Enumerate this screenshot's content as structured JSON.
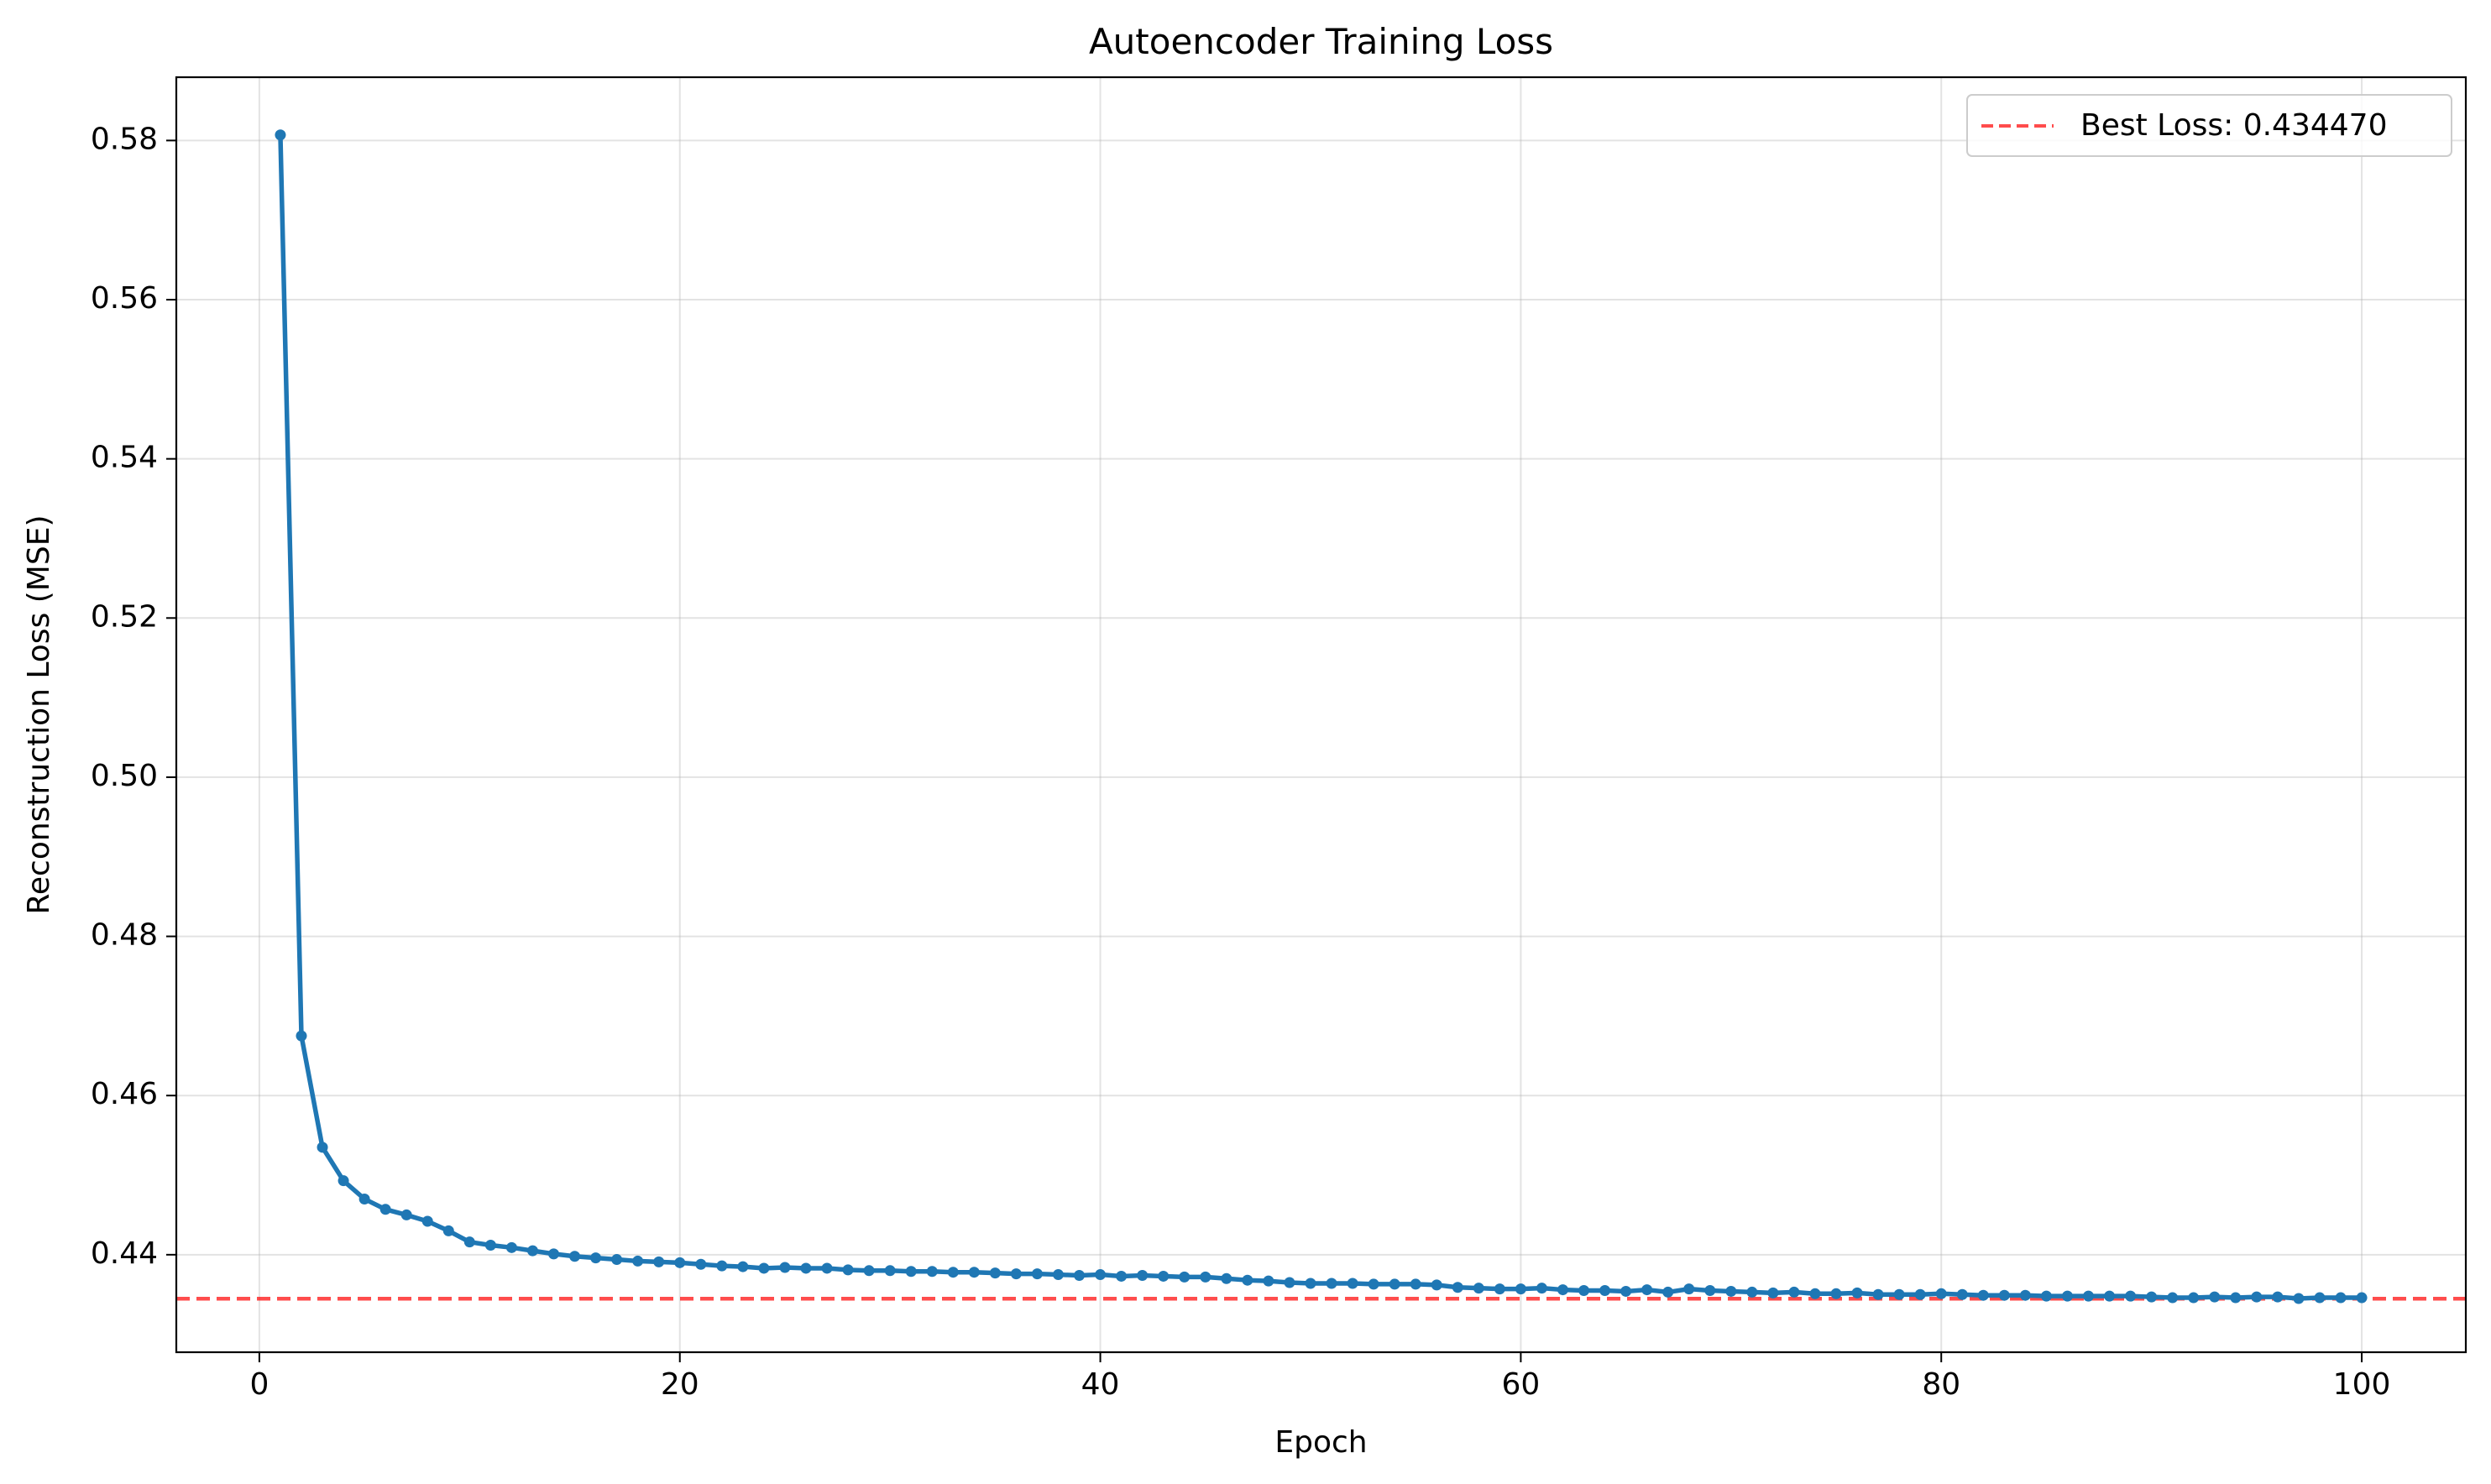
{
  "chart_data": {
    "type": "line",
    "title": "Autoencoder Training Loss",
    "xlabel": "Epoch",
    "ylabel": "Reconstruction Loss (MSE)",
    "xlim": [
      -3.95,
      104.95
    ],
    "ylim": [
      0.42775,
      0.58795
    ],
    "x_ticks": [
      0,
      20,
      40,
      60,
      80,
      100
    ],
    "x_tick_labels": [
      "0",
      "20",
      "40",
      "60",
      "80",
      "100"
    ],
    "y_ticks": [
      0.44,
      0.46,
      0.48,
      0.5,
      0.52,
      0.54,
      0.56,
      0.58
    ],
    "y_tick_labels": [
      "0.44",
      "0.46",
      "0.48",
      "0.50",
      "0.52",
      "0.54",
      "0.56",
      "0.58"
    ],
    "grid": true,
    "legend_position": "top-right",
    "series": [
      {
        "color": "#1f77b4",
        "marker": "circle",
        "x": [
          1,
          2,
          3,
          4,
          5,
          6,
          7,
          8,
          9,
          10,
          11,
          12,
          13,
          14,
          15,
          16,
          17,
          18,
          19,
          20,
          21,
          22,
          23,
          24,
          25,
          26,
          27,
          28,
          29,
          30,
          31,
          32,
          33,
          34,
          35,
          36,
          37,
          38,
          39,
          40,
          41,
          42,
          43,
          44,
          45,
          46,
          47,
          48,
          49,
          50,
          51,
          52,
          53,
          54,
          55,
          56,
          57,
          58,
          59,
          60,
          61,
          62,
          63,
          64,
          65,
          66,
          67,
          68,
          69,
          70,
          71,
          72,
          73,
          74,
          75,
          76,
          77,
          78,
          79,
          80,
          81,
          82,
          83,
          84,
          85,
          86,
          87,
          88,
          89,
          90,
          91,
          92,
          93,
          94,
          95,
          96,
          97,
          98,
          99,
          100
        ],
        "values": [
          0.5807,
          0.4675,
          0.4535,
          0.4493,
          0.447,
          0.4457,
          0.445,
          0.4442,
          0.443,
          0.4416,
          0.4412,
          0.4409,
          0.4405,
          0.4401,
          0.4398,
          0.4396,
          0.4394,
          0.4392,
          0.4391,
          0.439,
          0.4388,
          0.4386,
          0.4385,
          0.4383,
          0.4384,
          0.4383,
          0.4383,
          0.4381,
          0.438,
          0.438,
          0.4379,
          0.4379,
          0.4378,
          0.4378,
          0.4377,
          0.4376,
          0.4376,
          0.4375,
          0.4374,
          0.4375,
          0.4373,
          0.4374,
          0.4373,
          0.4372,
          0.4372,
          0.437,
          0.4368,
          0.4367,
          0.4365,
          0.4364,
          0.4364,
          0.4364,
          0.4363,
          0.4363,
          0.4363,
          0.4362,
          0.4359,
          0.4358,
          0.4357,
          0.4357,
          0.4358,
          0.4356,
          0.4355,
          0.4355,
          0.4354,
          0.4356,
          0.4353,
          0.4357,
          0.4355,
          0.4354,
          0.4353,
          0.4352,
          0.4353,
          0.4351,
          0.4351,
          0.4352,
          0.435,
          0.435,
          0.435,
          0.4351,
          0.435,
          0.4349,
          0.4349,
          0.4349,
          0.4348,
          0.4348,
          0.4348,
          0.4348,
          0.4348,
          0.4347,
          0.4346,
          0.4346,
          0.4347,
          0.4346,
          0.4347,
          0.4347,
          0.4345,
          0.4346,
          0.4346,
          0.4346
        ]
      },
      {
        "name": "Best Loss: 0.434470",
        "type": "hline",
        "y": 0.43447,
        "color": "#ff0000",
        "style": "dashed"
      }
    ]
  }
}
